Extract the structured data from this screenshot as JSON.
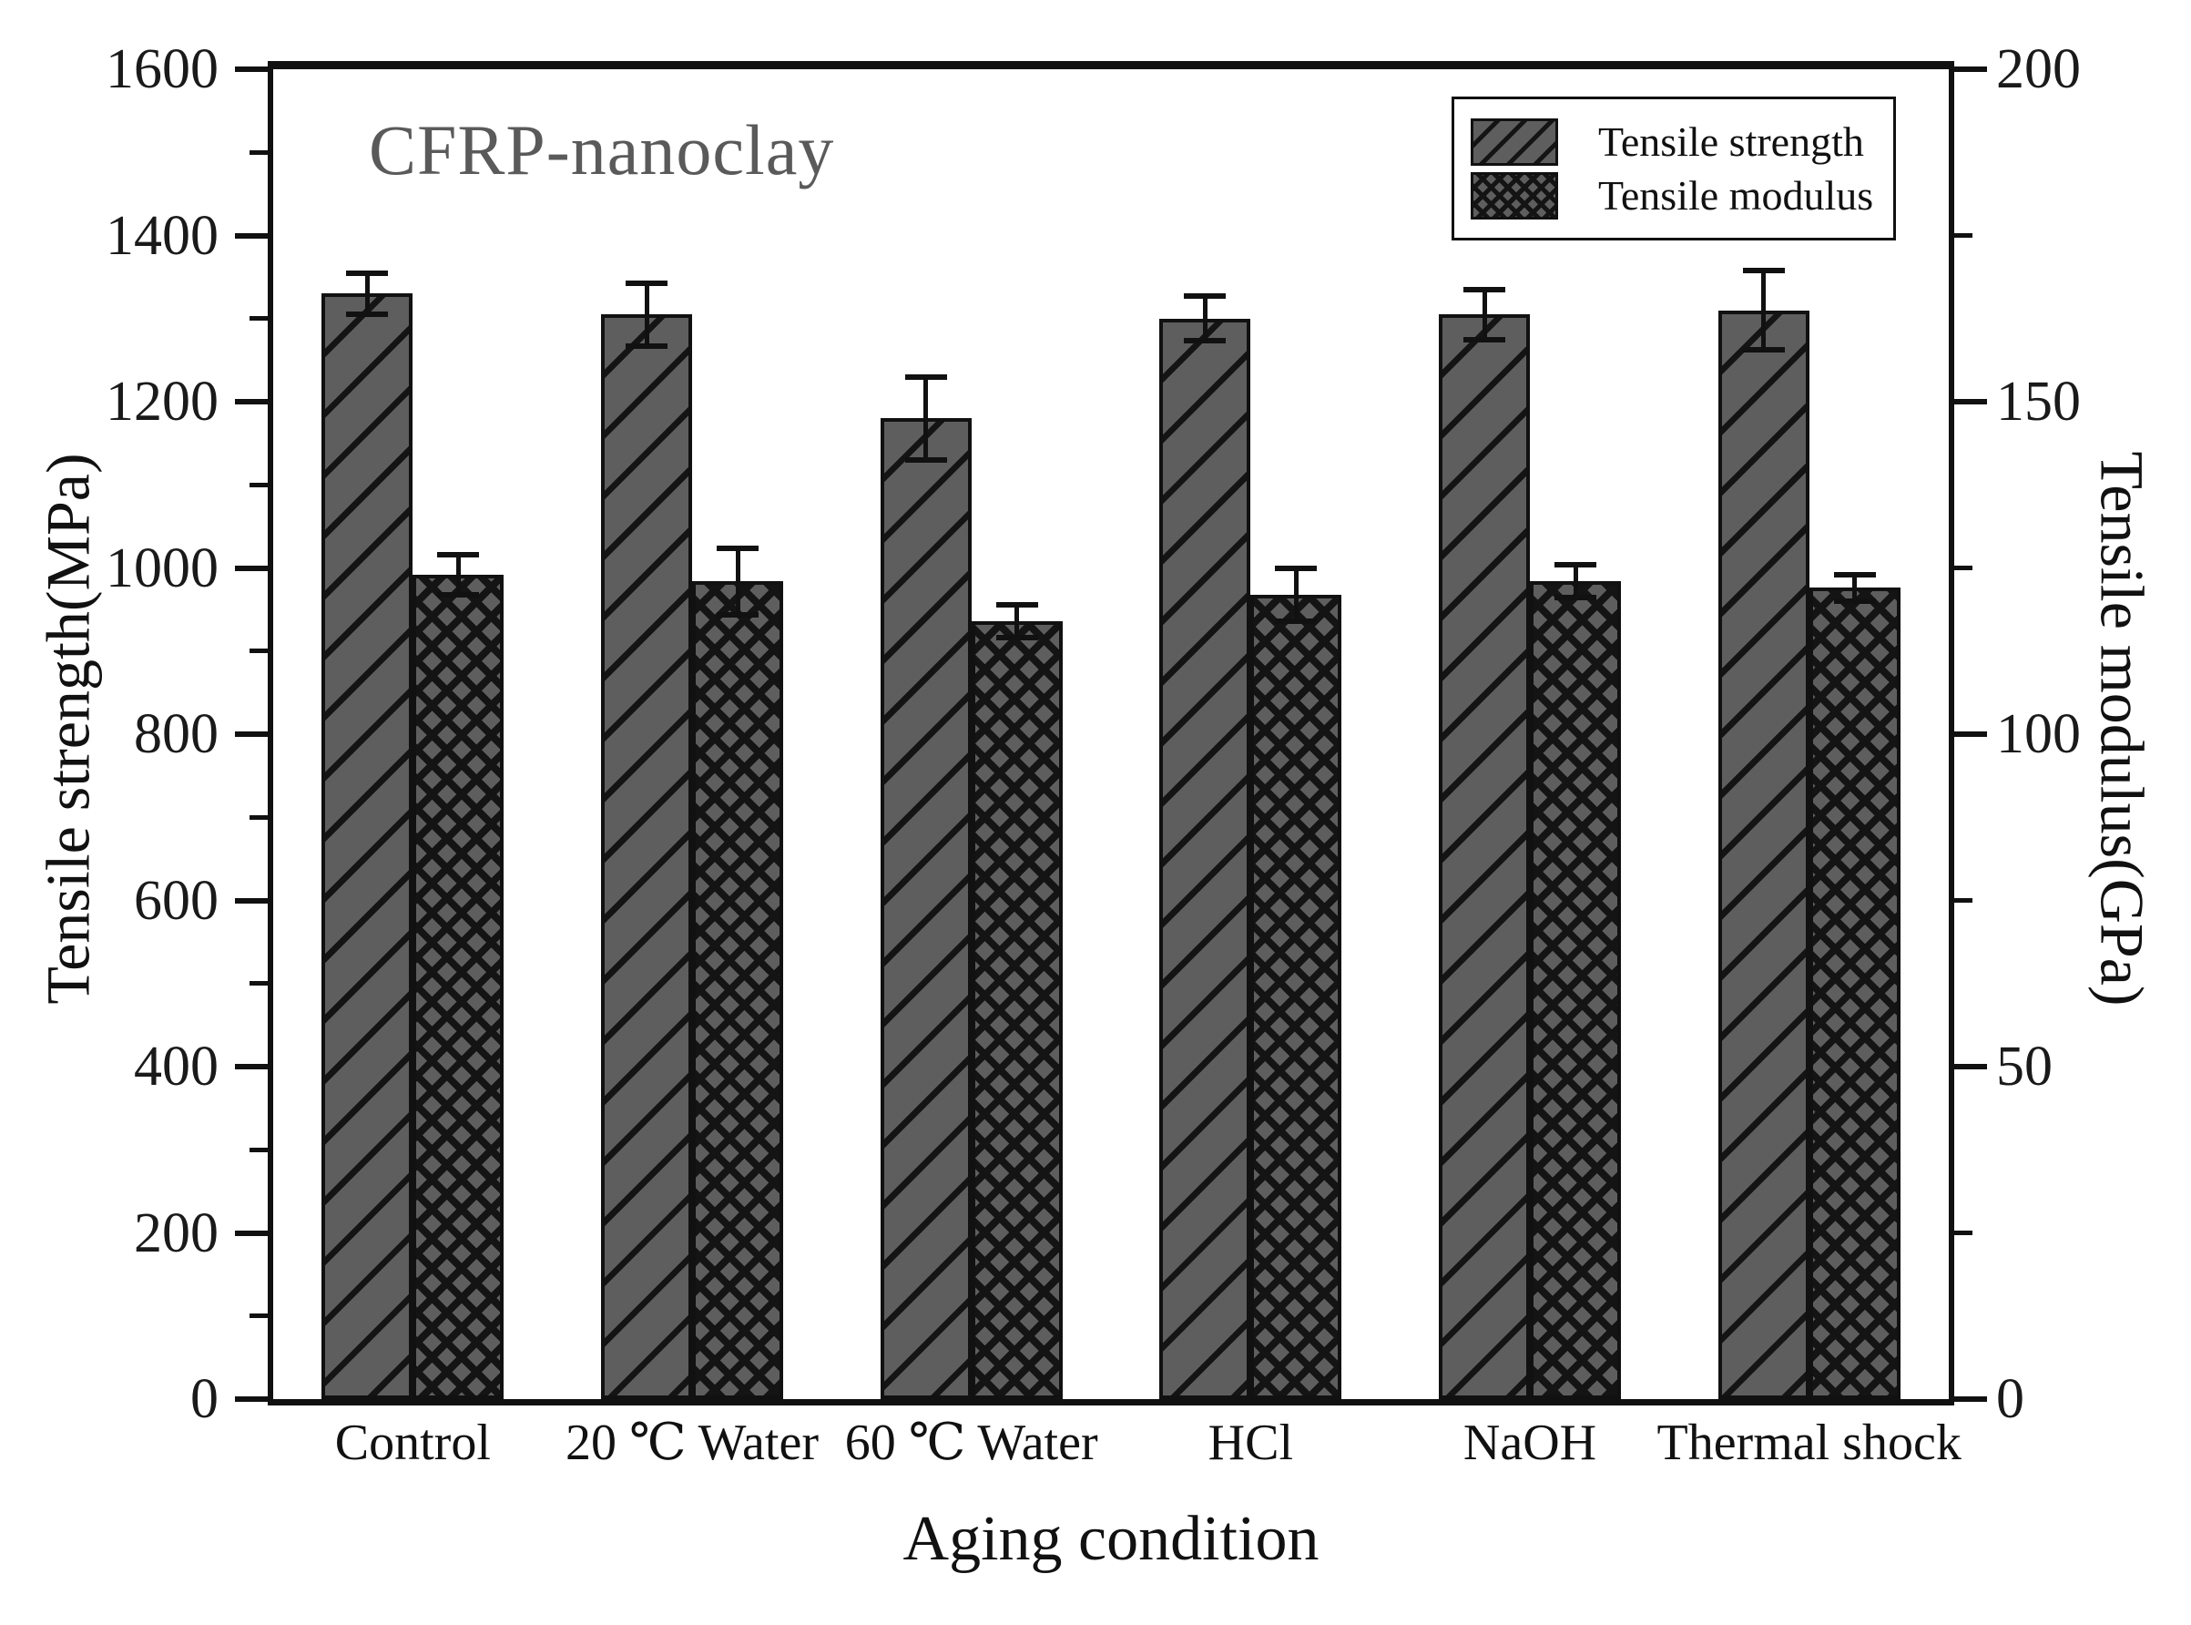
{
  "annotation": "CFRP-nanoclay",
  "legend": {
    "items": [
      {
        "label": "Tensile strength",
        "pattern": "diagonal"
      },
      {
        "label": "Tensile modulus",
        "pattern": "crosshatch"
      }
    ]
  },
  "colors": {
    "bar_fill": "#5e5e5e",
    "hatch": "#141414",
    "axis": "#111111",
    "annotation_text": "#5a5a5a",
    "background": "#ffffff"
  },
  "chart_data": {
    "type": "bar",
    "title_annotation": "CFRP-nanoclay",
    "categories": [
      "Control",
      "20 ℃ Water",
      "60 ℃ Water",
      "HCl",
      "NaOH",
      "Thermal shock"
    ],
    "xlabel": "Aging condition",
    "grid": "off",
    "legend_position": "top-right",
    "left_axis": {
      "label": "Tensile strength(MPa)",
      "min": 0,
      "max": 1600,
      "major_ticks": [
        0,
        200,
        400,
        600,
        800,
        1000,
        1200,
        1400,
        1600
      ],
      "minor_ticks": [
        100,
        300,
        500,
        700,
        900,
        1100,
        1300,
        1500
      ]
    },
    "right_axis": {
      "label": "Tensile modulus(GPa)",
      "min": 0,
      "max": 200,
      "major_ticks": [
        0,
        50,
        100,
        150,
        200
      ],
      "minor_ticks": [
        25,
        75,
        125,
        175
      ]
    },
    "series": [
      {
        "name": "Tensile strength",
        "axis": "left",
        "unit": "MPa",
        "pattern": "diagonal",
        "values": [
          1330,
          1305,
          1180,
          1300,
          1305,
          1310
        ],
        "errors": [
          25,
          38,
          50,
          27,
          30,
          48
        ]
      },
      {
        "name": "Tensile modulus",
        "axis": "right",
        "unit": "GPa",
        "pattern": "crosshatch",
        "values": [
          124,
          123,
          117,
          121,
          123,
          122
        ],
        "errors": [
          3,
          5,
          2.5,
          4,
          2.5,
          2
        ]
      }
    ]
  }
}
